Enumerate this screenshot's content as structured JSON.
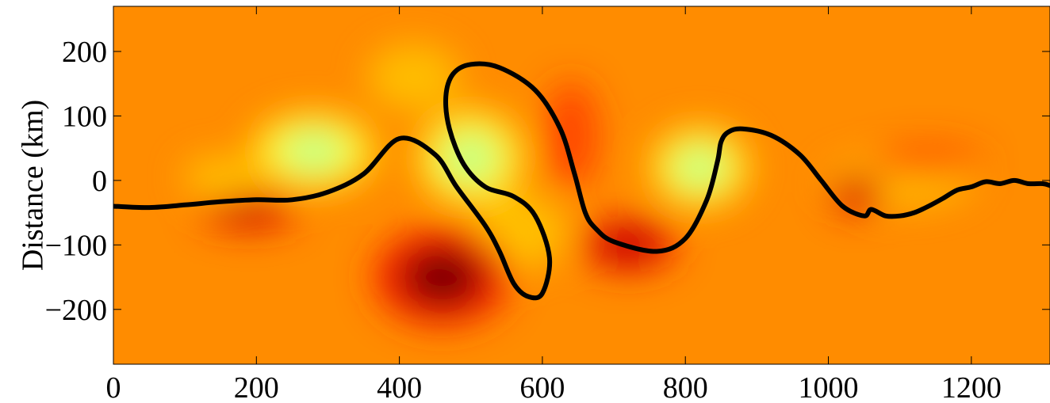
{
  "chart_data": {
    "type": "heatmap",
    "title": "",
    "xlabel": "",
    "ylabel": "Distance (km)",
    "xlim": [
      0,
      1310
    ],
    "ylim": [
      -285,
      270
    ],
    "x_ticks": [
      0,
      200,
      400,
      600,
      800,
      1000,
      1200
    ],
    "x_tick_labels": [
      "0",
      "200",
      "400",
      "600",
      "800",
      "1000",
      "1200"
    ],
    "y_ticks": [
      200,
      100,
      0,
      -100,
      -200
    ],
    "y_tick_labels": [
      "200",
      "100",
      "0",
      "−100",
      "−200"
    ],
    "grid": false,
    "colormap": [
      "#6b0000",
      "#c00000",
      "#ff3300",
      "#ff8c00",
      "#ffd000",
      "#ffff33",
      "#b8ff8c"
    ],
    "background_color": "#ff8c00",
    "features": [
      {
        "kind": "cool",
        "x": 280,
        "y": 45,
        "sx": 70,
        "sy": 48,
        "a": 1.0
      },
      {
        "kind": "cool",
        "x": 500,
        "y": 35,
        "sx": 60,
        "sy": 60,
        "a": 0.95
      },
      {
        "kind": "cool",
        "x": 820,
        "y": 20,
        "sx": 55,
        "sy": 50,
        "a": 0.95
      },
      {
        "kind": "cool",
        "x": 150,
        "y": 5,
        "sx": 40,
        "sy": 25,
        "a": 0.45
      },
      {
        "kind": "cool",
        "x": 1100,
        "y": 0,
        "sx": 80,
        "sy": 30,
        "a": 0.35
      },
      {
        "kind": "cool",
        "x": 570,
        "y": -80,
        "sx": 50,
        "sy": 45,
        "a": 0.45
      },
      {
        "kind": "cool",
        "x": 420,
        "y": 160,
        "sx": 50,
        "sy": 40,
        "a": 0.35
      },
      {
        "kind": "warm",
        "x": 460,
        "y": -150,
        "sx": 75,
        "sy": 60,
        "a": 1.0
      },
      {
        "kind": "warm",
        "x": 190,
        "y": -50,
        "sx": 55,
        "sy": 22,
        "a": 0.55
      },
      {
        "kind": "warm",
        "x": 720,
        "y": -100,
        "sx": 55,
        "sy": 35,
        "a": 0.7
      },
      {
        "kind": "warm",
        "x": 640,
        "y": 70,
        "sx": 30,
        "sy": 65,
        "a": 0.45
      },
      {
        "kind": "warm",
        "x": 1040,
        "y": -20,
        "sx": 30,
        "sy": 25,
        "a": 0.5
      },
      {
        "kind": "warm",
        "x": 1140,
        "y": 30,
        "sx": 60,
        "sy": 20,
        "a": 0.25
      }
    ],
    "series": [
      {
        "color": "#000000",
        "x": [
          0,
          50,
          100,
          150,
          200,
          250,
          300,
          350,
          400,
          450,
          480,
          520,
          540,
          560,
          580,
          600,
          610,
          590,
          560,
          520,
          490,
          470,
          465,
          475,
          500,
          540,
          590,
          625,
          645,
          660,
          675,
          700,
          760,
          800,
          830,
          845,
          850,
          860,
          880,
          920,
          960,
          990,
          1020,
          1050,
          1060,
          1080,
          1100,
          1120,
          1140,
          1160,
          1180,
          1200,
          1220,
          1240,
          1260,
          1280,
          1300,
          1310
        ],
        "y": [
          -40,
          -42,
          -38,
          -33,
          -30,
          -30,
          -18,
          10,
          65,
          40,
          -10,
          -70,
          -110,
          -160,
          -180,
          -175,
          -120,
          -55,
          -25,
          -10,
          25,
          80,
          130,
          165,
          180,
          175,
          140,
          80,
          10,
          -50,
          -75,
          -95,
          -110,
          -90,
          -30,
          30,
          60,
          75,
          80,
          70,
          40,
          0,
          -40,
          -55,
          -45,
          -55,
          -55,
          -50,
          -40,
          -28,
          -15,
          -10,
          -2,
          -5,
          0,
          -5,
          -5,
          -8
        ]
      }
    ]
  }
}
